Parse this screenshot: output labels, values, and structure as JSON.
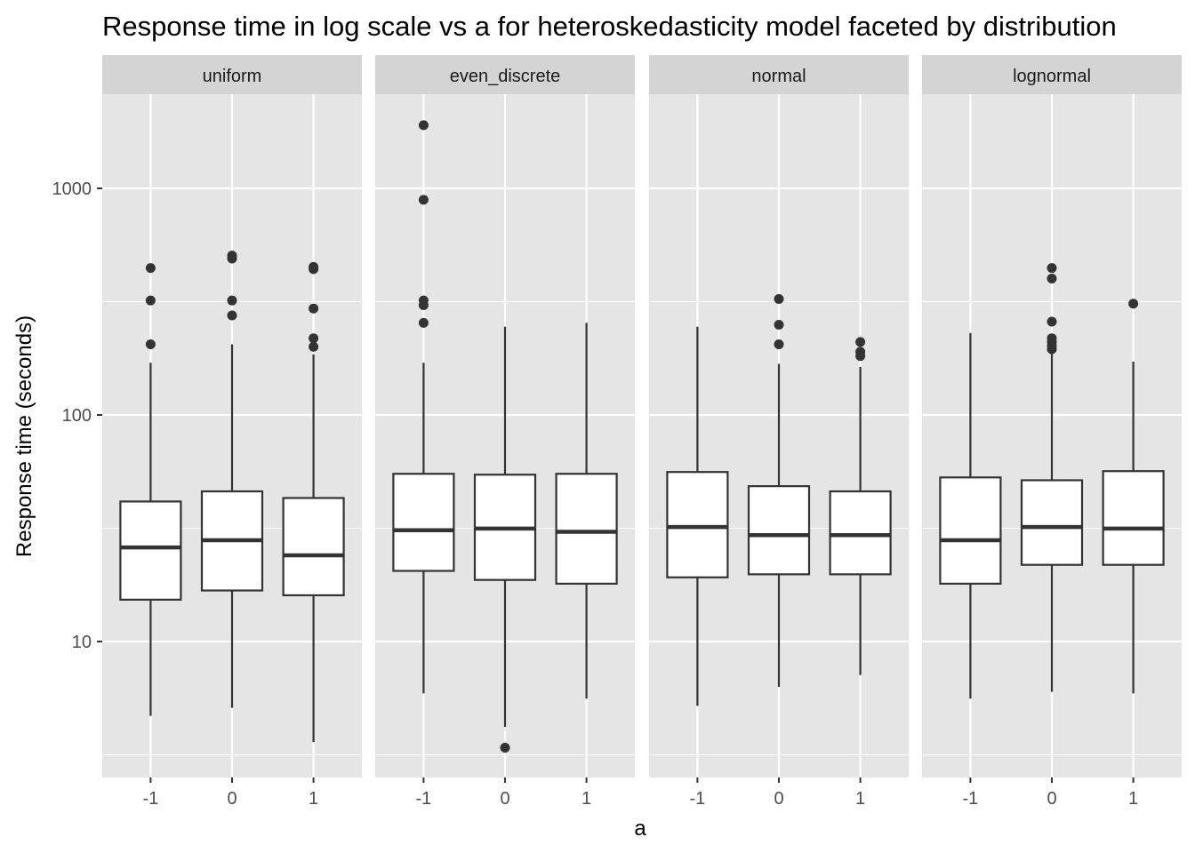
{
  "chart_data": {
    "type": "boxplot",
    "title": "Response time in log scale vs a for heteroskedasticity model faceted by distribution",
    "xlabel": "a",
    "ylabel": "Response time (seconds)",
    "y_scale": "log10",
    "ylim": [
      2.9,
      2700
    ],
    "y_ticks": [
      10,
      100,
      1000
    ],
    "y_tick_labels": [
      "10",
      "100",
      "1000"
    ],
    "y_minor_gridlines": [
      3.162,
      31.62,
      316.2
    ],
    "x_categories": [
      "-1",
      "0",
      "1"
    ],
    "grid": true,
    "panel_background": "#e5e5e5",
    "strip_background": "#d4d4d4",
    "gridline_color": "#ffffff",
    "box_fill": "#ffffff",
    "box_stroke": "#333333",
    "outlier_color": "#333333",
    "facets": [
      {
        "name": "uniform",
        "boxes": [
          {
            "x": "-1",
            "whisker_low": 4.7,
            "q1": 15.3,
            "median": 26.0,
            "q3": 41.5,
            "whisker_high": 170,
            "outliers": [
              205,
              320,
              445
            ]
          },
          {
            "x": "0",
            "whisker_low": 5.1,
            "q1": 16.8,
            "median": 28.0,
            "q3": 46.0,
            "whisker_high": 205,
            "outliers": [
              275,
              320,
              490,
              505
            ]
          },
          {
            "x": "1",
            "whisker_low": 3.6,
            "q1": 16.0,
            "median": 24.0,
            "q3": 43.0,
            "whisker_high": 185,
            "outliers": [
              200,
              218,
              295,
              440,
              450
            ]
          }
        ]
      },
      {
        "name": "even_discrete",
        "boxes": [
          {
            "x": "-1",
            "whisker_low": 5.9,
            "q1": 20.5,
            "median": 31.0,
            "q3": 55.0,
            "whisker_high": 170,
            "outliers": [
              255,
              305,
              320,
              890,
              1900
            ]
          },
          {
            "x": "0",
            "whisker_low": 4.2,
            "q1": 18.7,
            "median": 31.5,
            "q3": 54.5,
            "whisker_high": 245,
            "outliers": [
              3.4
            ]
          },
          {
            "x": "1",
            "whisker_low": 5.6,
            "q1": 18.0,
            "median": 30.5,
            "q3": 55.0,
            "whisker_high": 255,
            "outliers": []
          }
        ]
      },
      {
        "name": "normal",
        "boxes": [
          {
            "x": "-1",
            "whisker_low": 5.2,
            "q1": 19.2,
            "median": 32.0,
            "q3": 56.0,
            "whisker_high": 245,
            "outliers": []
          },
          {
            "x": "0",
            "whisker_low": 6.3,
            "q1": 19.8,
            "median": 29.5,
            "q3": 48.5,
            "whisker_high": 168,
            "outliers": [
              205,
              250,
              325
            ]
          },
          {
            "x": "1",
            "whisker_low": 7.1,
            "q1": 19.8,
            "median": 29.5,
            "q3": 46.0,
            "whisker_high": 163,
            "outliers": [
              182,
              190,
              210
            ]
          }
        ]
      },
      {
        "name": "lognormal",
        "boxes": [
          {
            "x": "-1",
            "whisker_low": 5.6,
            "q1": 18.0,
            "median": 28.0,
            "q3": 53.0,
            "whisker_high": 230,
            "outliers": []
          },
          {
            "x": "0",
            "whisker_low": 6.0,
            "q1": 21.8,
            "median": 32.0,
            "q3": 51.5,
            "whisker_high": 188,
            "outliers": [
              195,
              202,
              210,
              218,
              258,
              400,
              445
            ]
          },
          {
            "x": "1",
            "whisker_low": 5.9,
            "q1": 21.8,
            "median": 31.5,
            "q3": 56.5,
            "whisker_high": 172,
            "outliers": [
              310
            ]
          }
        ]
      }
    ]
  }
}
